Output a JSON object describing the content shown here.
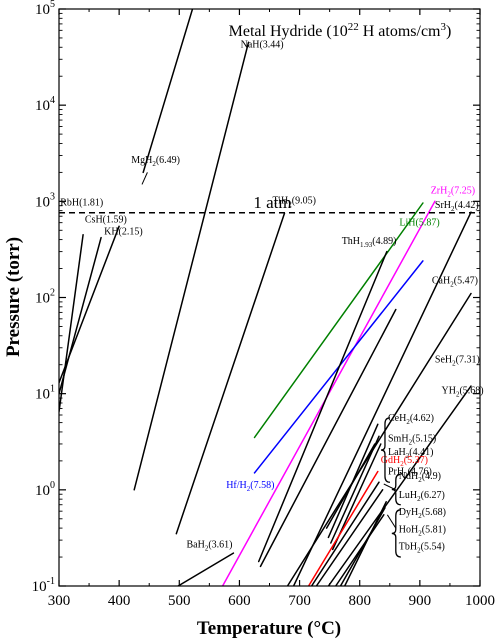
{
  "chart_data": {
    "type": "line",
    "title": "Metal Hydride (10²² H atoms/cm³)",
    "xlabel": "Temperature (°C)",
    "ylabel": "Pressure (torr)",
    "xlim": [
      300,
      1000
    ],
    "ylim": [
      0.1,
      100000
    ],
    "yscale": "log",
    "x_ticks": [
      "300",
      "400",
      "500",
      "600",
      "700",
      "800",
      "900",
      "1000"
    ],
    "y_ticks": [
      {
        "base": "10",
        "exp": "-1"
      },
      {
        "base": "10",
        "exp": "0"
      },
      {
        "base": "10",
        "exp": "1"
      },
      {
        "base": "10",
        "exp": "2"
      },
      {
        "base": "10",
        "exp": "3"
      },
      {
        "base": "10",
        "exp": "4"
      },
      {
        "base": "10",
        "exp": "5"
      }
    ],
    "reference_line": {
      "label": "1 atm",
      "y": 760
    },
    "series": [
      {
        "name": "MgH2",
        "color": "#000000",
        "points": [
          [
            440,
            2000
          ],
          [
            522,
            100000
          ]
        ]
      },
      {
        "name": "NaH",
        "color": "#000000",
        "points": [
          [
            425,
            1.0
          ],
          [
            615,
            45000
          ]
        ]
      },
      {
        "name": "RbH",
        "color": "#000000",
        "points": [
          [
            300,
            6.5
          ],
          [
            340,
            450
          ]
        ]
      },
      {
        "name": "CsH",
        "color": "#000000",
        "points": [
          [
            300,
            10
          ],
          [
            370,
            420
          ]
        ]
      },
      {
        "name": "KH",
        "color": "#000000",
        "points": [
          [
            300,
            13
          ],
          [
            400,
            550
          ]
        ]
      },
      {
        "name": "TiH2",
        "color": "#000000",
        "points": [
          [
            495,
            0.35
          ],
          [
            675,
            750
          ]
        ]
      },
      {
        "name": "ZrH2",
        "color": "#ff00ff",
        "points": [
          [
            572,
            0.1
          ],
          [
            925,
            1000
          ]
        ]
      },
      {
        "name": "LiH",
        "color": "#008000",
        "points": [
          [
            625,
            3.5
          ],
          [
            905,
            960
          ]
        ]
      },
      {
        "name": "HfH2",
        "color": "#0000ff",
        "points": [
          [
            625,
            1.5
          ],
          [
            905,
            240
          ]
        ]
      },
      {
        "name": "ThH1.93",
        "color": "#000000",
        "points": [
          [
            632,
            0.18
          ],
          [
            845,
            300
          ]
        ]
      },
      {
        "name": "SrH2",
        "color": "#000000",
        "points": [
          [
            690,
            0.1
          ],
          [
            985,
            770
          ]
        ]
      },
      {
        "name": "CaH2",
        "color": "#000000",
        "points": [
          [
            635,
            0.16
          ],
          [
            860,
            75
          ]
        ]
      },
      {
        "name": "SeH2",
        "color": "#000000",
        "points": [
          [
            680,
            0.1
          ],
          [
            985,
            110
          ]
        ]
      },
      {
        "name": "YH2",
        "color": "#000000",
        "points": [
          [
            748,
            0.1
          ],
          [
            985,
            12
          ]
        ]
      },
      {
        "name": "CeH2",
        "color": "#000000",
        "points": [
          [
            745,
            0.4
          ],
          [
            825,
            3.0
          ]
        ]
      },
      {
        "name": "SmH2",
        "color": "#000000",
        "points": [
          [
            748,
            0.32
          ],
          [
            830,
            4.8
          ]
        ]
      },
      {
        "name": "LaH2",
        "color": "#000000",
        "points": [
          [
            752,
            0.28
          ],
          [
            832,
            3.6
          ]
        ]
      },
      {
        "name": "PrH2",
        "color": "#000000",
        "points": [
          [
            755,
            0.24
          ],
          [
            835,
            3.0
          ]
        ]
      },
      {
        "name": "GdH2",
        "color": "#ff0000",
        "points": [
          [
            715,
            0.1
          ],
          [
            830,
            1.55
          ]
        ]
      },
      {
        "name": "NdH2",
        "color": "#000000",
        "points": [
          [
            720,
            0.1
          ],
          [
            832,
            1.2
          ]
        ]
      },
      {
        "name": "LuH2",
        "color": "#000000",
        "points": [
          [
            728,
            0.1
          ],
          [
            838,
            1.0
          ]
        ]
      },
      {
        "name": "DyH2",
        "color": "#000000",
        "points": [
          [
            760,
            0.1
          ],
          [
            840,
            0.55
          ]
        ]
      },
      {
        "name": "HoH2",
        "color": "#000000",
        "points": [
          [
            768,
            0.1
          ],
          [
            842,
            0.65
          ]
        ]
      },
      {
        "name": "TbH2",
        "color": "#000000",
        "points": [
          [
            775,
            0.1
          ],
          [
            844,
            0.75
          ]
        ]
      },
      {
        "name": "BaH2",
        "color": "#000000",
        "points": [
          [
            498,
            0.1
          ],
          [
            590,
            0.22
          ]
        ]
      }
    ],
    "labels": [
      {
        "base": "MgH",
        "sub": "2",
        "tail": "(6.49)",
        "x": 420,
        "y": 2500,
        "color": "#000000"
      },
      {
        "base": "NaH(3.44)",
        "sub": "",
        "tail": "",
        "x": 602,
        "y": 40000,
        "color": "#000000"
      },
      {
        "base": "RbH(1.81)",
        "sub": "",
        "tail": "",
        "x": 302,
        "y": 900,
        "color": "#000000"
      },
      {
        "base": "CsH(1.59)",
        "sub": "",
        "tail": "",
        "x": 343,
        "y": 600,
        "color": "#000000"
      },
      {
        "base": "KH(2.15)",
        "sub": "",
        "tail": "",
        "x": 375,
        "y": 450,
        "color": "#000000"
      },
      {
        "base": "TiH",
        "sub": "2",
        "tail": "(9.05)",
        "x": 655,
        "y": 950,
        "color": "#000000"
      },
      {
        "base": "ZrH",
        "sub": "2",
        "tail": "(7.25)",
        "x": 918,
        "y": 1200,
        "color": "#ff00ff"
      },
      {
        "base": "SrH",
        "sub": "2",
        "tail": "(4.42)",
        "x": 925,
        "y": 850,
        "color": "#000000"
      },
      {
        "base": "LiH(5.87)",
        "sub": "",
        "tail": "",
        "x": 866,
        "y": 560,
        "color": "#008000"
      },
      {
        "base": "ThH",
        "sub": "1.93",
        "tail": "(4.89)",
        "x": 770,
        "y": 360,
        "color": "#000000"
      },
      {
        "base": "CaH",
        "sub": "2",
        "tail": "(5.47)",
        "x": 920,
        "y": 140,
        "color": "#000000"
      },
      {
        "base": "SeH",
        "sub": "2",
        "tail": "(7.31)",
        "x": 925,
        "y": 21,
        "color": "#000000"
      },
      {
        "base": "YH",
        "sub": "2",
        "tail": "(5.68)",
        "x": 936,
        "y": 10,
        "color": "#000000"
      },
      {
        "base": "CeH",
        "sub": "2",
        "tail": "(4.62)",
        "x": 847,
        "y": 5.2,
        "color": "#000000"
      },
      {
        "base": "SmH",
        "sub": "2",
        "tail": "(5.15)",
        "x": 847,
        "y": 3.2,
        "color": "#000000"
      },
      {
        "base": "LaH",
        "sub": "2",
        "tail": "(4.41)",
        "x": 847,
        "y": 2.3,
        "color": "#000000"
      },
      {
        "base": "PrH",
        "sub": "2",
        "tail": "(4.76)",
        "x": 847,
        "y": 1.45,
        "color": "#000000"
      },
      {
        "base": "GdH",
        "sub": "2",
        "tail": "(5.37)",
        "x": 835,
        "y": 1.9,
        "color": "#ff0000"
      },
      {
        "base": "NdH",
        "sub": "2",
        "tail": "(4.9)",
        "x": 865,
        "y": 1.3,
        "color": "#000000"
      },
      {
        "base": "LuH",
        "sub": "2",
        "tail": "(6.27)",
        "x": 865,
        "y": 0.82,
        "color": "#000000"
      },
      {
        "base": "DyH",
        "sub": "2",
        "tail": "(5.68)",
        "x": 865,
        "y": 0.55,
        "color": "#000000"
      },
      {
        "base": "HoH",
        "sub": "2",
        "tail": "(5.81)",
        "x": 865,
        "y": 0.36,
        "color": "#000000"
      },
      {
        "base": "TbH",
        "sub": "2",
        "tail": "(5.54)",
        "x": 865,
        "y": 0.24,
        "color": "#000000"
      },
      {
        "base": "Hf/H",
        "sub": "2",
        "tail": "(7.58)",
        "x": 578,
        "y": 1.05,
        "color": "#0000ff"
      },
      {
        "base": "BaH",
        "sub": "2",
        "tail": "(3.61)",
        "x": 512,
        "y": 0.25,
        "color": "#000000"
      }
    ]
  }
}
